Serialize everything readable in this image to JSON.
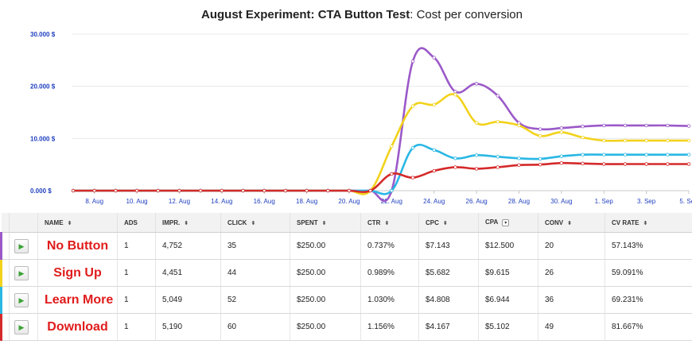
{
  "chart": {
    "title_bold": "August Experiment: CTA Button Test",
    "title_rest": ": Cost per conversion"
  },
  "chart_data": {
    "type": "line",
    "title": "August Experiment: CTA Button Test: Cost per conversion",
    "xlabel": "",
    "ylabel": "",
    "x": [
      "7 Aug",
      "8 Aug",
      "9 Aug",
      "10 Aug",
      "11 Aug",
      "12 Aug",
      "13 Aug",
      "14 Aug",
      "15 Aug",
      "16 Aug",
      "17 Aug",
      "18 Aug",
      "19 Aug",
      "20 Aug",
      "21 Aug",
      "22 Aug",
      "23 Aug",
      "24 Aug",
      "25 Aug",
      "26 Aug",
      "27 Aug",
      "28 Aug",
      "29 Aug",
      "30 Aug",
      "31 Aug",
      "1 Sep",
      "2 Sep",
      "3 Sep",
      "4 Sep",
      "5 Sep"
    ],
    "x_tick_labels": [
      "8. Aug",
      "10. Aug",
      "12. Aug",
      "14. Aug",
      "16. Aug",
      "18. Aug",
      "20. Aug",
      "22. Aug",
      "24. Aug",
      "26. Aug",
      "28. Aug",
      "30. Aug",
      "1. Sep",
      "3. Sep",
      "5. Sep"
    ],
    "y_tick_labels": [
      "0.000 $",
      "10.000 $",
      "20.000 $",
      "30.000 $"
    ],
    "ylim": [
      0,
      30000
    ],
    "grid": true,
    "series": [
      {
        "name": "No Button",
        "color": "#9b59c8",
        "values": [
          0,
          0,
          0,
          0,
          0,
          0,
          0,
          0,
          0,
          0,
          0,
          0,
          0,
          0,
          0,
          0,
          24800,
          25500,
          19000,
          20500,
          18200,
          13000,
          11800,
          12000,
          12300,
          12500,
          12500,
          12500,
          12500,
          12400
        ]
      },
      {
        "name": "Sign Up",
        "color": "#f2d21b",
        "values": [
          0,
          0,
          0,
          0,
          0,
          0,
          0,
          0,
          0,
          0,
          0,
          0,
          0,
          0,
          0,
          8500,
          16200,
          16500,
          18400,
          13000,
          13200,
          12500,
          10500,
          11200,
          10200,
          9600,
          9600,
          9600,
          9600,
          9600
        ]
      },
      {
        "name": "Learn More",
        "color": "#29b7e4",
        "values": [
          0,
          0,
          0,
          0,
          0,
          0,
          0,
          0,
          0,
          0,
          0,
          0,
          0,
          0,
          0,
          0,
          8200,
          7800,
          6200,
          6800,
          6500,
          6200,
          6100,
          6600,
          6900,
          6900,
          6900,
          6900,
          6900,
          6900
        ]
      },
      {
        "name": "Download",
        "color": "#d42a2a",
        "values": [
          0,
          0,
          0,
          0,
          0,
          0,
          0,
          0,
          0,
          0,
          0,
          0,
          0,
          0,
          0,
          3200,
          2500,
          3800,
          4500,
          4200,
          4500,
          4900,
          5000,
          5300,
          5200,
          5100,
          5100,
          5100,
          5100,
          5100
        ]
      }
    ]
  },
  "table": {
    "headers": [
      "NAME",
      "ADS",
      "IMPR.",
      "CLICK",
      "SPENT",
      "CTR",
      "CPC",
      "CPA",
      "CONV",
      "CV RATE"
    ],
    "sort_icon": "⬍",
    "sort_box_icon": "▾",
    "play_icon": "▶",
    "rows": [
      {
        "color": "#9b59c8",
        "name": "No Button",
        "ads": "1",
        "impr": "4,752",
        "click": "35",
        "spent": "$250.00",
        "ctr": "0.737%",
        "cpc": "$7.143",
        "cpa": "$12.500",
        "conv": "20",
        "cvrate": "57.143%"
      },
      {
        "color": "#f2d21b",
        "name": "Sign Up",
        "ads": "1",
        "impr": "4,451",
        "click": "44",
        "spent": "$250.00",
        "ctr": "0.989%",
        "cpc": "$5.682",
        "cpa": "$9.615",
        "conv": "26",
        "cvrate": "59.091%"
      },
      {
        "color": "#29b7e4",
        "name": "Learn More",
        "ads": "1",
        "impr": "5,049",
        "click": "52",
        "spent": "$250.00",
        "ctr": "1.030%",
        "cpc": "$4.808",
        "cpa": "$6.944",
        "conv": "36",
        "cvrate": "69.231%"
      },
      {
        "color": "#d42a2a",
        "name": "Download",
        "ads": "1",
        "impr": "5,190",
        "click": "60",
        "spent": "$250.00",
        "ctr": "1.156%",
        "cpc": "$4.167",
        "cpa": "$5.102",
        "conv": "49",
        "cvrate": "81.667%"
      }
    ]
  }
}
